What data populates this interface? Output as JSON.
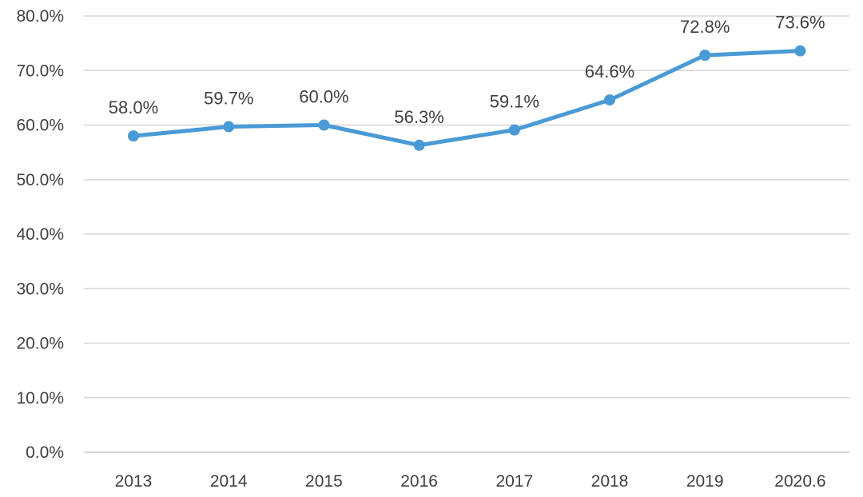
{
  "chart_data": {
    "type": "line",
    "title": "",
    "xlabel": "",
    "ylabel": "",
    "categories": [
      "2013",
      "2014",
      "2015",
      "2016",
      "2017",
      "2018",
      "2019",
      "2020.6"
    ],
    "series": [
      {
        "values": [
          58.0,
          59.7,
          60.0,
          56.3,
          59.1,
          64.6,
          72.8,
          73.6
        ],
        "data_labels": [
          "58.0%",
          "59.7%",
          "60.0%",
          "56.3%",
          "59.1%",
          "64.6%",
          "72.8%",
          "73.6%"
        ],
        "color": "#4a9ad6"
      }
    ],
    "ylim": [
      0,
      80
    ],
    "yticks": [
      0,
      10,
      20,
      30,
      40,
      50,
      60,
      70,
      80
    ],
    "ytick_labels": [
      "0.0%",
      "10.0%",
      "20.0%",
      "30.0%",
      "40.0%",
      "50.0%",
      "60.0%",
      "70.0%",
      "80.0%"
    ],
    "grid": true,
    "legend": "none"
  }
}
